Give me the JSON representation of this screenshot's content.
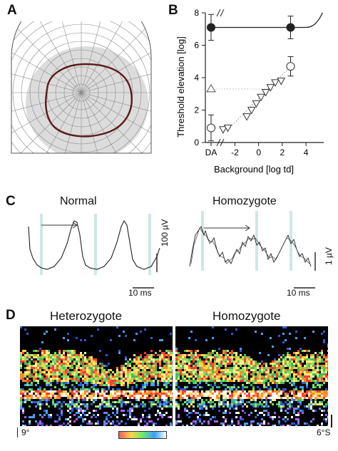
{
  "panels": {
    "a": {
      "letter": "A"
    },
    "b": {
      "letter": "B"
    },
    "c": {
      "letter": "C"
    },
    "d": {
      "letter": "D"
    }
  },
  "chart_data": [
    {
      "panel": "A",
      "type": "other",
      "description_free": true,
      "grid": true
    },
    {
      "panel": "B",
      "type": "scatter",
      "xlabel": "Background [log td]",
      "ylabel": "Threshold elevation [log]",
      "x_ticks": [
        "DA",
        "-2",
        "0",
        "2",
        "4"
      ],
      "y_ticks": [
        "0",
        "2",
        "4",
        "6",
        "8"
      ],
      "xlim": [
        -4.5,
        5.5
      ],
      "ylim": [
        0,
        8
      ],
      "series": [
        {
          "marker": "filled-circle",
          "points": [
            {
              "x": "DA",
              "y": 7.1,
              "err": 0.8
            },
            {
              "x": 2.7,
              "y": 7.1,
              "err": 0.7
            }
          ]
        },
        {
          "marker": "open-circle",
          "points": [
            {
              "x": "DA",
              "y": 0.9,
              "err": 0.8
            },
            {
              "x": 2.7,
              "y": 4.7,
              "err": 0.6
            }
          ]
        },
        {
          "marker": "open-triangle-up",
          "points": [
            {
              "x": "DA",
              "y": 3.3
            }
          ]
        },
        {
          "marker": "open-triangle-down",
          "points": [
            {
              "x": -3.0,
              "y": 0.8
            },
            {
              "x": -2.6,
              "y": 0.9
            },
            {
              "x": -1.0,
              "y": 1.6
            },
            {
              "x": -0.6,
              "y": 2.0
            },
            {
              "x": -0.2,
              "y": 2.4
            },
            {
              "x": 0.2,
              "y": 2.8
            },
            {
              "x": 0.6,
              "y": 3.1
            },
            {
              "x": 1.0,
              "y": 3.4
            },
            {
              "x": 1.4,
              "y": 3.7
            },
            {
              "x": 1.9,
              "y": 3.8
            }
          ]
        }
      ]
    },
    {
      "panel": "C",
      "type": "line",
      "traces": [
        {
          "title": "Normal",
          "time_scale": "10 ms",
          "amp_scale": "100 µV"
        },
        {
          "title": "Homozygote",
          "time_scale": "10 ms",
          "amp_scale": "1 µV"
        }
      ]
    },
    {
      "panel": "D",
      "type": "heatmap",
      "images": [
        {
          "title": "Heterozygote",
          "corner_label": "9°"
        },
        {
          "title": "Homozygote",
          "corner_label": "6°S"
        }
      ],
      "colorbar": [
        "#ff5a5a",
        "#ffd34d",
        "#6ee86e",
        "#3aa0ff",
        "#ffffff"
      ]
    }
  ]
}
